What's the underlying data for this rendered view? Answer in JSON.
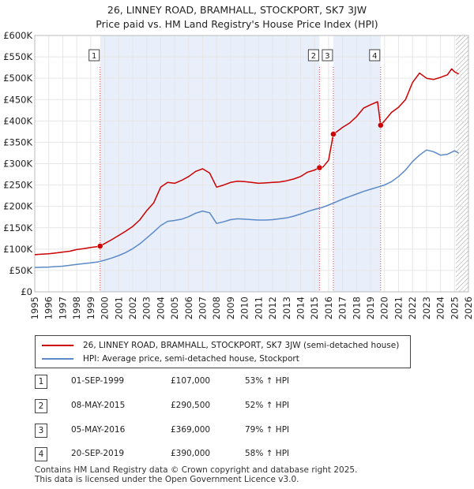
{
  "title_line1": "26, LINNEY ROAD, BRAMHALL, STOCKPORT, SK7 3JW",
  "title_line2": "Price paid vs. HM Land Registry's House Price Index (HPI)",
  "chart_data": {
    "type": "line",
    "xlim": [
      1995,
      2026
    ],
    "ylim": [
      0,
      600000
    ],
    "yticks": [
      0,
      50000,
      100000,
      150000,
      200000,
      250000,
      300000,
      350000,
      400000,
      450000,
      500000,
      550000,
      600000
    ],
    "ytick_labels": [
      "£0",
      "£50K",
      "£100K",
      "£150K",
      "£200K",
      "£250K",
      "£300K",
      "£350K",
      "£400K",
      "£450K",
      "£500K",
      "£550K",
      "£600K"
    ],
    "xticks": [
      1995,
      1996,
      1997,
      1998,
      1999,
      2000,
      2001,
      2002,
      2003,
      2004,
      2005,
      2006,
      2007,
      2008,
      2009,
      2010,
      2011,
      2012,
      2013,
      2014,
      2015,
      2016,
      2017,
      2018,
      2019,
      2020,
      2021,
      2022,
      2023,
      2024,
      2025,
      2026
    ],
    "series": [
      {
        "name": "26, LINNEY ROAD, BRAMHALL, STOCKPORT, SK7 3JW (semi-detached house)",
        "color": "#cc0000",
        "x": [
          1995.0,
          1995.5,
          1996.0,
          1996.5,
          1997.0,
          1997.5,
          1998.0,
          1998.5,
          1999.0,
          1999.5,
          1999.67,
          2000.0,
          2000.5,
          2001.0,
          2001.5,
          2002.0,
          2002.5,
          2003.0,
          2003.5,
          2004.0,
          2004.5,
          2005.0,
          2005.5,
          2006.0,
          2006.5,
          2007.0,
          2007.5,
          2008.0,
          2008.5,
          2009.0,
          2009.5,
          2010.0,
          2010.5,
          2011.0,
          2011.5,
          2012.0,
          2012.5,
          2013.0,
          2013.5,
          2014.0,
          2014.5,
          2015.0,
          2015.35,
          2015.6,
          2016.0,
          2016.34,
          2016.6,
          2017.0,
          2017.5,
          2018.0,
          2018.5,
          2019.0,
          2019.5,
          2019.6,
          2019.72,
          2020.0,
          2020.5,
          2021.0,
          2021.5,
          2022.0,
          2022.5,
          2023.0,
          2023.5,
          2024.0,
          2024.5,
          2024.8,
          2025.0,
          2025.3
        ],
        "values": [
          87000,
          88000,
          89000,
          91000,
          93000,
          95000,
          99000,
          101000,
          104000,
          106000,
          107000,
          113000,
          122000,
          132000,
          142000,
          153000,
          168000,
          190000,
          208000,
          245000,
          256000,
          254000,
          261000,
          270000,
          282000,
          288000,
          278000,
          245000,
          250000,
          256000,
          259000,
          258000,
          256000,
          254000,
          255000,
          256000,
          257000,
          260000,
          264000,
          270000,
          280000,
          285000,
          290500,
          292000,
          308000,
          369000,
          375000,
          385000,
          395000,
          410000,
          430000,
          438000,
          445000,
          420000,
          390000,
          400000,
          420000,
          432000,
          450000,
          490000,
          512000,
          500000,
          497000,
          502000,
          508000,
          522000,
          515000,
          510000
        ]
      },
      {
        "name": "HPI: Average price, semi-detached house, Stockport",
        "color": "#5b8ac7",
        "x": [
          1995.0,
          1995.5,
          1996.0,
          1996.5,
          1997.0,
          1997.5,
          1998.0,
          1998.5,
          1999.0,
          1999.5,
          2000.0,
          2000.5,
          2001.0,
          2001.5,
          2002.0,
          2002.5,
          2003.0,
          2003.5,
          2004.0,
          2004.5,
          2005.0,
          2005.5,
          2006.0,
          2006.5,
          2007.0,
          2007.5,
          2008.0,
          2008.5,
          2009.0,
          2009.5,
          2010.0,
          2010.5,
          2011.0,
          2011.5,
          2012.0,
          2012.5,
          2013.0,
          2013.5,
          2014.0,
          2014.5,
          2015.0,
          2015.5,
          2016.0,
          2016.5,
          2017.0,
          2017.5,
          2018.0,
          2018.5,
          2019.0,
          2019.5,
          2020.0,
          2020.5,
          2021.0,
          2021.5,
          2022.0,
          2022.5,
          2023.0,
          2023.5,
          2024.0,
          2024.5,
          2025.0,
          2025.3
        ],
        "values": [
          57000,
          57500,
          58000,
          59000,
          60000,
          62000,
          64000,
          66000,
          68000,
          70000,
          74000,
          79000,
          85000,
          92000,
          101000,
          112000,
          126000,
          140000,
          155000,
          165000,
          167000,
          170000,
          176000,
          184000,
          189000,
          185000,
          160000,
          164000,
          169000,
          171000,
          170000,
          169000,
          168000,
          168000,
          169000,
          171000,
          173000,
          177000,
          182000,
          188000,
          193000,
          197000,
          203000,
          210000,
          217000,
          223000,
          229000,
          235000,
          240000,
          245000,
          250000,
          258000,
          270000,
          285000,
          305000,
          320000,
          332000,
          328000,
          320000,
          322000,
          330000,
          325000
        ]
      }
    ],
    "sales": [
      {
        "label": "1",
        "x": 1999.67,
        "price": 107000
      },
      {
        "label": "2",
        "x": 2015.35,
        "price": 290500
      },
      {
        "label": "3",
        "x": 2016.34,
        "price": 369000
      },
      {
        "label": "4",
        "x": 2019.72,
        "price": 390000
      }
    ],
    "shaded_ranges": [
      [
        1999.67,
        2015.35
      ],
      [
        2016.34,
        2019.72
      ]
    ],
    "hatched_from": 2025.1
  },
  "legend": {
    "property_label": "26, LINNEY ROAD, BRAMHALL, STOCKPORT, SK7 3JW (semi-detached house)",
    "hpi_label": "HPI: Average price, semi-detached house, Stockport",
    "property_color": "#cc0000",
    "hpi_color": "#5b8ac7"
  },
  "transactions": [
    {
      "num": "1",
      "date": "01-SEP-1999",
      "price": "£107,000",
      "hpi": "53% ↑ HPI"
    },
    {
      "num": "2",
      "date": "08-MAY-2015",
      "price": "£290,500",
      "hpi": "52% ↑ HPI"
    },
    {
      "num": "3",
      "date": "05-MAY-2016",
      "price": "£369,000",
      "hpi": "79% ↑ HPI"
    },
    {
      "num": "4",
      "date": "20-SEP-2019",
      "price": "£390,000",
      "hpi": "58% ↑ HPI"
    }
  ],
  "footer_line1": "Contains HM Land Registry data © Crown copyright and database right 2025.",
  "footer_line2": "This data is licensed under the Open Government Licence v3.0."
}
